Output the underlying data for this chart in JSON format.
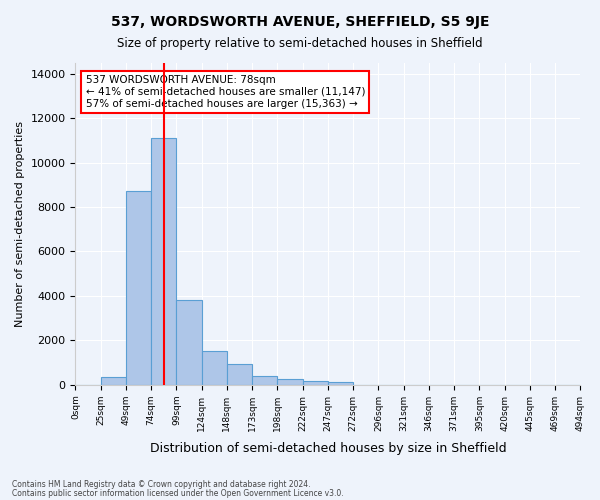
{
  "title": "537, WORDSWORTH AVENUE, SHEFFIELD, S5 9JE",
  "subtitle": "Size of property relative to semi-detached houses in Sheffield",
  "xlabel": "Distribution of semi-detached houses by size in Sheffield",
  "ylabel": "Number of semi-detached properties",
  "bar_values": [
    0,
    350,
    8700,
    11100,
    3800,
    1500,
    950,
    380,
    250,
    170,
    130,
    0,
    0,
    0,
    0,
    0,
    0,
    0,
    0,
    0
  ],
  "bin_labels": [
    "0sqm",
    "25sqm",
    "49sqm",
    "74sqm",
    "99sqm",
    "124sqm",
    "148sqm",
    "173sqm",
    "198sqm",
    "222sqm",
    "247sqm",
    "272sqm",
    "296sqm",
    "321sqm",
    "346sqm",
    "371sqm",
    "395sqm",
    "420sqm",
    "445sqm",
    "469sqm",
    "494sqm"
  ],
  "bar_color": "#aec6e8",
  "bar_edge_color": "#5a9fd4",
  "vline_x": 3,
  "vline_color": "red",
  "annotation_text": "537 WORDSWORTH AVENUE: 78sqm\n← 41% of semi-detached houses are smaller (11,147)\n57% of semi-detached houses are larger (15,363) →",
  "annotation_box_color": "white",
  "annotation_box_edge": "red",
  "ylim": [
    0,
    14500
  ],
  "yticks": [
    0,
    2000,
    4000,
    6000,
    8000,
    10000,
    12000,
    14000
  ],
  "footnote1": "Contains HM Land Registry data © Crown copyright and database right 2024.",
  "footnote2": "Contains public sector information licensed under the Open Government Licence v3.0.",
  "bg_color": "#eef3fb",
  "grid_color": "white"
}
